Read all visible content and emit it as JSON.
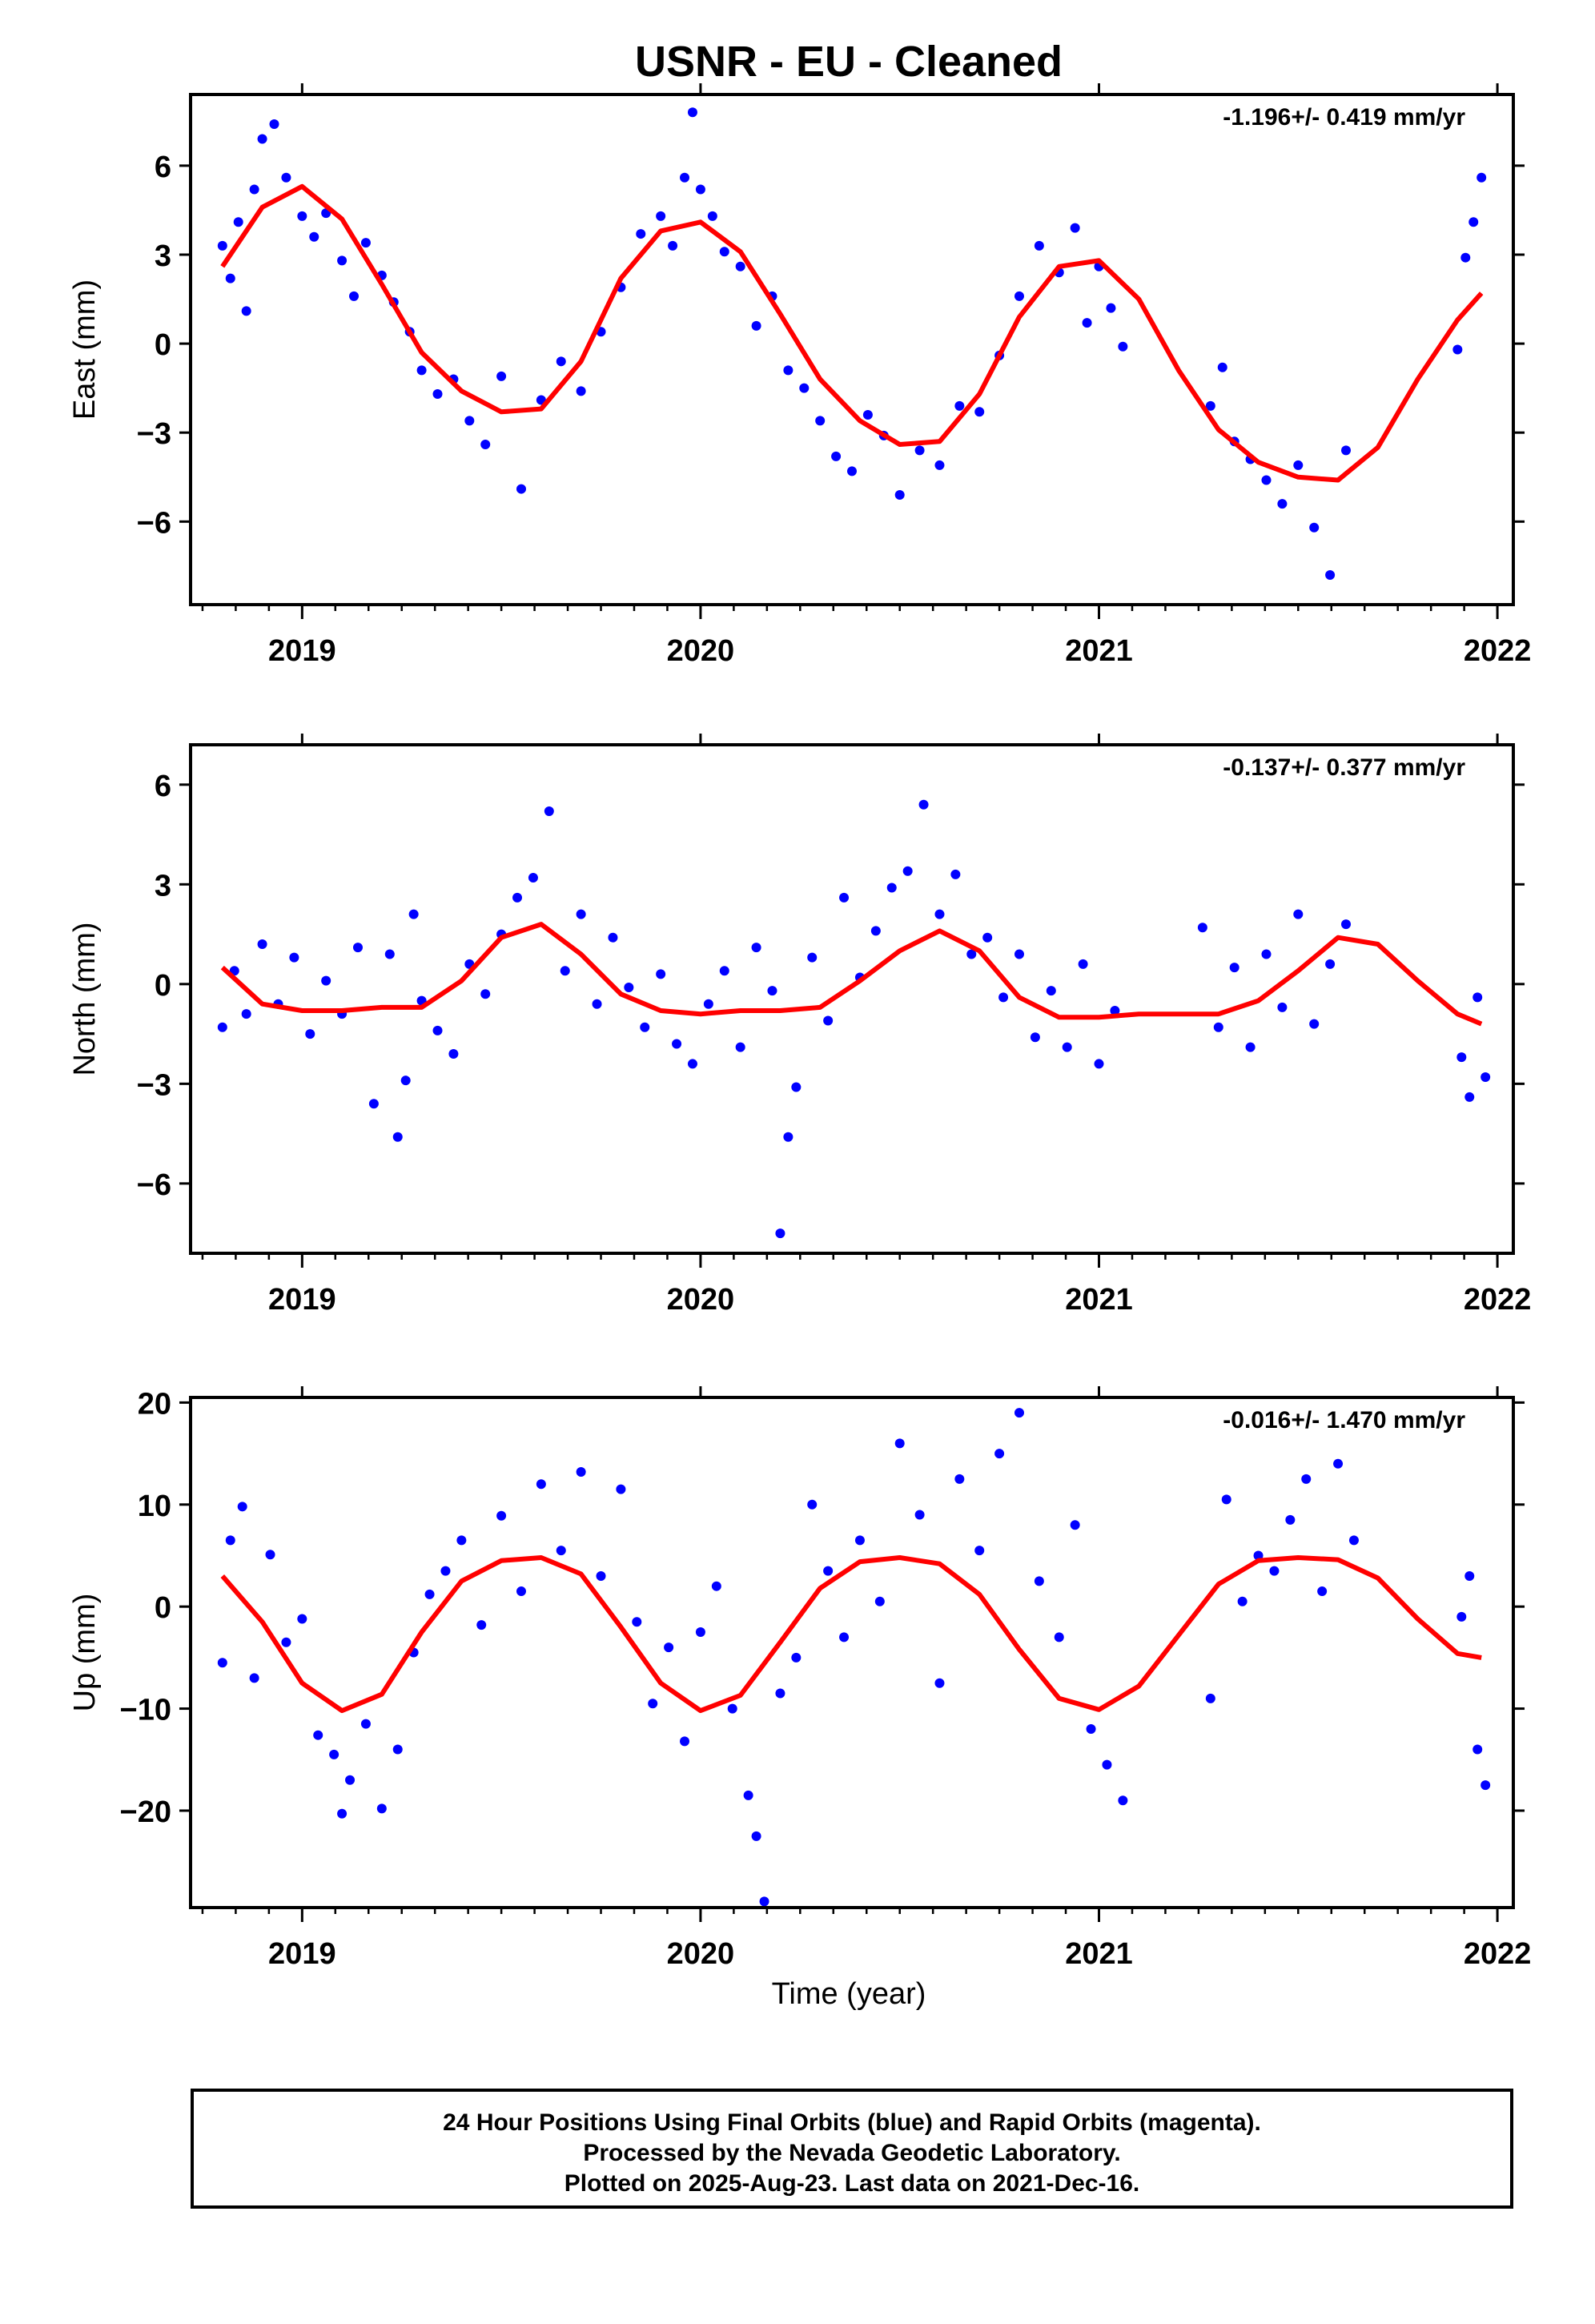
{
  "title": "USNR  - EU - Cleaned",
  "xlabel": "Time (year)",
  "footer": [
    "24 Hour Positions Using Final Orbits (blue) and Rapid Orbits (magenta).",
    "Processed by the Nevada Geodetic Laboratory.",
    "Plotted on 2025-Aug-23. Last data on 2021-Dec-16."
  ],
  "colors": {
    "data": "#0000ff",
    "fit": "#ff0000",
    "axes": "#000000"
  },
  "chart_data": [
    {
      "type": "scatter",
      "panel": "East",
      "ylabel": "East (mm)",
      "rate": "-1.196+/- 0.419 mm/yr",
      "xlim": [
        2018.72,
        2022.04
      ],
      "ylim": [
        -8.8,
        8.4
      ],
      "xticks": [
        2019,
        2020,
        2021,
        2022
      ],
      "yticks": [
        -6,
        -3,
        0,
        3,
        6
      ],
      "fit": {
        "x": [
          2018.8,
          2018.9,
          2019.0,
          2019.1,
          2019.2,
          2019.3,
          2019.4,
          2019.5,
          2019.6,
          2019.7,
          2019.8,
          2019.9,
          2020.0,
          2020.1,
          2020.2,
          2020.3,
          2020.4,
          2020.5,
          2020.6,
          2020.7,
          2020.8,
          2020.9,
          2021.0,
          2021.1,
          2021.2,
          2021.3,
          2021.4,
          2021.5,
          2021.6,
          2021.7,
          2021.8,
          2021.9,
          2021.96
        ],
        "y": [
          2.6,
          4.6,
          5.3,
          4.2,
          2.0,
          -0.3,
          -1.6,
          -2.3,
          -2.2,
          -0.6,
          2.2,
          3.8,
          4.1,
          3.1,
          1.0,
          -1.2,
          -2.6,
          -3.4,
          -3.3,
          -1.7,
          0.9,
          2.6,
          2.8,
          1.5,
          -0.9,
          -2.9,
          -4.0,
          -4.5,
          -4.6,
          -3.5,
          -1.2,
          0.8,
          1.7
        ]
      },
      "points": {
        "x": [
          2018.8,
          2018.82,
          2018.84,
          2018.86,
          2018.88,
          2018.9,
          2018.93,
          2018.96,
          2019.0,
          2019.03,
          2019.06,
          2019.1,
          2019.13,
          2019.16,
          2019.2,
          2019.23,
          2019.27,
          2019.3,
          2019.34,
          2019.38,
          2019.42,
          2019.46,
          2019.5,
          2019.55,
          2019.6,
          2019.65,
          2019.7,
          2019.75,
          2019.8,
          2019.85,
          2019.9,
          2019.93,
          2019.96,
          2019.98,
          2020.0,
          2020.03,
          2020.06,
          2020.1,
          2020.14,
          2020.18,
          2020.22,
          2020.26,
          2020.3,
          2020.34,
          2020.38,
          2020.42,
          2020.46,
          2020.5,
          2020.55,
          2020.6,
          2020.65,
          2020.7,
          2020.75,
          2020.8,
          2020.85,
          2020.9,
          2020.94,
          2020.97,
          2021.0,
          2021.03,
          2021.06,
          2021.28,
          2021.31,
          2021.34,
          2021.38,
          2021.42,
          2021.46,
          2021.5,
          2021.54,
          2021.58,
          2021.62,
          2021.9,
          2021.92,
          2021.94,
          2021.96
        ],
        "y": [
          3.3,
          2.2,
          4.1,
          1.1,
          5.2,
          6.9,
          7.4,
          5.6,
          4.3,
          3.6,
          4.4,
          2.8,
          1.6,
          3.4,
          2.3,
          1.4,
          0.4,
          -0.9,
          -1.7,
          -1.2,
          -2.6,
          -3.4,
          -1.1,
          -4.9,
          -1.9,
          -0.6,
          -1.6,
          0.4,
          1.9,
          3.7,
          4.3,
          3.3,
          5.6,
          7.8,
          5.2,
          4.3,
          3.1,
          2.6,
          0.6,
          1.6,
          -0.9,
          -1.5,
          -2.6,
          -3.8,
          -4.3,
          -2.4,
          -3.1,
          -5.1,
          -3.6,
          -4.1,
          -2.1,
          -2.3,
          -0.4,
          1.6,
          3.3,
          2.4,
          3.9,
          0.7,
          2.6,
          1.2,
          -0.1,
          -2.1,
          -0.8,
          -3.3,
          -3.9,
          -4.6,
          -5.4,
          -4.1,
          -6.2,
          -7.8,
          -3.6,
          -0.2,
          2.9,
          4.1,
          5.6
        ]
      }
    },
    {
      "type": "scatter",
      "panel": "North",
      "ylabel": "North (mm)",
      "rate": "-0.137+/- 0.377 mm/yr",
      "xlim": [
        2018.72,
        2022.04
      ],
      "ylim": [
        -8.1,
        7.2
      ],
      "xticks": [
        2019,
        2020,
        2021,
        2022
      ],
      "yticks": [
        -6,
        -3,
        0,
        3,
        6
      ],
      "fit": {
        "x": [
          2018.8,
          2018.9,
          2019.0,
          2019.1,
          2019.2,
          2019.3,
          2019.4,
          2019.5,
          2019.6,
          2019.7,
          2019.8,
          2019.9,
          2020.0,
          2020.1,
          2020.2,
          2020.3,
          2020.4,
          2020.5,
          2020.6,
          2020.7,
          2020.8,
          2020.9,
          2021.0,
          2021.1,
          2021.2,
          2021.3,
          2021.4,
          2021.5,
          2021.6,
          2021.7,
          2021.8,
          2021.9,
          2021.96
        ],
        "y": [
          0.5,
          -0.6,
          -0.8,
          -0.8,
          -0.7,
          -0.7,
          0.1,
          1.4,
          1.8,
          0.9,
          -0.3,
          -0.8,
          -0.9,
          -0.8,
          -0.8,
          -0.7,
          0.1,
          1.0,
          1.6,
          1.0,
          -0.4,
          -1.0,
          -1.0,
          -0.9,
          -0.9,
          -0.9,
          -0.5,
          0.4,
          1.4,
          1.2,
          0.1,
          -0.9,
          -1.2
        ]
      },
      "points": {
        "x": [
          2018.8,
          2018.83,
          2018.86,
          2018.9,
          2018.94,
          2018.98,
          2019.02,
          2019.06,
          2019.1,
          2019.14,
          2019.18,
          2019.22,
          2019.24,
          2019.26,
          2019.28,
          2019.3,
          2019.34,
          2019.38,
          2019.42,
          2019.46,
          2019.5,
          2019.54,
          2019.58,
          2019.62,
          2019.66,
          2019.7,
          2019.74,
          2019.78,
          2019.82,
          2019.86,
          2019.9,
          2019.94,
          2019.98,
          2020.02,
          2020.06,
          2020.1,
          2020.14,
          2020.18,
          2020.2,
          2020.22,
          2020.24,
          2020.28,
          2020.32,
          2020.36,
          2020.4,
          2020.44,
          2020.48,
          2020.52,
          2020.56,
          2020.6,
          2020.64,
          2020.68,
          2020.72,
          2020.76,
          2020.8,
          2020.84,
          2020.88,
          2020.92,
          2020.96,
          2021.0,
          2021.04,
          2021.26,
          2021.3,
          2021.34,
          2021.38,
          2021.42,
          2021.46,
          2021.5,
          2021.54,
          2021.58,
          2021.62,
          2021.91,
          2021.93,
          2021.95,
          2021.97
        ],
        "y": [
          -1.3,
          0.4,
          -0.9,
          1.2,
          -0.6,
          0.8,
          -1.5,
          0.1,
          -0.9,
          1.1,
          -3.6,
          0.9,
          -4.6,
          -2.9,
          2.1,
          -0.5,
          -1.4,
          -2.1,
          0.6,
          -0.3,
          1.5,
          2.6,
          3.2,
          5.2,
          0.4,
          2.1,
          -0.6,
          1.4,
          -0.1,
          -1.3,
          0.3,
          -1.8,
          -2.4,
          -0.6,
          0.4,
          -1.9,
          1.1,
          -0.2,
          -7.5,
          -4.6,
          -3.1,
          0.8,
          -1.1,
          2.6,
          0.2,
          1.6,
          2.9,
          3.4,
          5.4,
          2.1,
          3.3,
          0.9,
          1.4,
          -0.4,
          0.9,
          -1.6,
          -0.2,
          -1.9,
          0.6,
          -2.4,
          -0.8,
          1.7,
          -1.3,
          0.5,
          -1.9,
          0.9,
          -0.7,
          2.1,
          -1.2,
          0.6,
          1.8,
          -2.2,
          -3.4,
          -0.4,
          -2.8
        ]
      }
    },
    {
      "type": "scatter",
      "panel": "Up",
      "ylabel": "Up (mm)",
      "rate": "-0.016+/- 1.470 mm/yr",
      "xlim": [
        2018.72,
        2022.04
      ],
      "ylim": [
        -29.5,
        20.5
      ],
      "xticks": [
        2019,
        2020,
        2021,
        2022
      ],
      "yticks": [
        -20,
        -10,
        0,
        10,
        20
      ],
      "fit": {
        "x": [
          2018.8,
          2018.9,
          2019.0,
          2019.1,
          2019.2,
          2019.3,
          2019.4,
          2019.5,
          2019.6,
          2019.7,
          2019.8,
          2019.9,
          2020.0,
          2020.1,
          2020.2,
          2020.3,
          2020.4,
          2020.5,
          2020.6,
          2020.7,
          2020.8,
          2020.9,
          2021.0,
          2021.1,
          2021.2,
          2021.3,
          2021.4,
          2021.5,
          2021.6,
          2021.7,
          2021.8,
          2021.9,
          2021.96
        ],
        "y": [
          3.0,
          -1.5,
          -7.5,
          -10.2,
          -8.6,
          -2.5,
          2.5,
          4.5,
          4.8,
          3.2,
          -2.0,
          -7.5,
          -10.2,
          -8.7,
          -3.5,
          1.8,
          4.4,
          4.8,
          4.2,
          1.2,
          -4.2,
          -9.0,
          -10.1,
          -7.8,
          -2.8,
          2.2,
          4.5,
          4.8,
          4.6,
          2.8,
          -1.2,
          -4.6,
          -5.0
        ]
      },
      "points": {
        "x": [
          2018.8,
          2018.82,
          2018.85,
          2018.88,
          2018.92,
          2018.96,
          2019.0,
          2019.04,
          2019.08,
          2019.1,
          2019.12,
          2019.16,
          2019.2,
          2019.24,
          2019.28,
          2019.32,
          2019.36,
          2019.4,
          2019.45,
          2019.5,
          2019.55,
          2019.6,
          2019.65,
          2019.7,
          2019.75,
          2019.8,
          2019.84,
          2019.88,
          2019.92,
          2019.96,
          2020.0,
          2020.04,
          2020.08,
          2020.12,
          2020.14,
          2020.16,
          2020.2,
          2020.24,
          2020.28,
          2020.32,
          2020.36,
          2020.4,
          2020.45,
          2020.5,
          2020.55,
          2020.6,
          2020.65,
          2020.7,
          2020.75,
          2020.8,
          2020.85,
          2020.9,
          2020.94,
          2020.98,
          2021.02,
          2021.06,
          2021.28,
          2021.32,
          2021.36,
          2021.4,
          2021.44,
          2021.48,
          2021.52,
          2021.56,
          2021.6,
          2021.64,
          2021.91,
          2021.93,
          2021.95,
          2021.97
        ],
        "y": [
          -5.5,
          6.5,
          9.8,
          -7.0,
          5.1,
          -3.5,
          -1.2,
          -12.6,
          -14.5,
          -20.3,
          -17.0,
          -11.5,
          -19.8,
          -14.0,
          -4.5,
          1.2,
          3.5,
          6.5,
          -1.8,
          8.9,
          1.5,
          12.0,
          5.5,
          13.2,
          3.0,
          11.5,
          -1.5,
          -9.5,
          -4.0,
          -13.2,
          -2.5,
          2.0,
          -10.0,
          -18.5,
          -22.5,
          -28.9,
          -8.5,
          -5.0,
          10.0,
          3.5,
          -3.0,
          6.5,
          0.5,
          16.0,
          9.0,
          -7.5,
          12.5,
          5.5,
          15.0,
          19.0,
          2.5,
          -3.0,
          8.0,
          -12.0,
          -15.5,
          -19.0,
          -9.0,
          10.5,
          0.5,
          5.0,
          3.5,
          8.5,
          12.5,
          1.5,
          14.0,
          6.5,
          -1.0,
          3.0,
          -14.0,
          -17.5
        ]
      }
    }
  ]
}
